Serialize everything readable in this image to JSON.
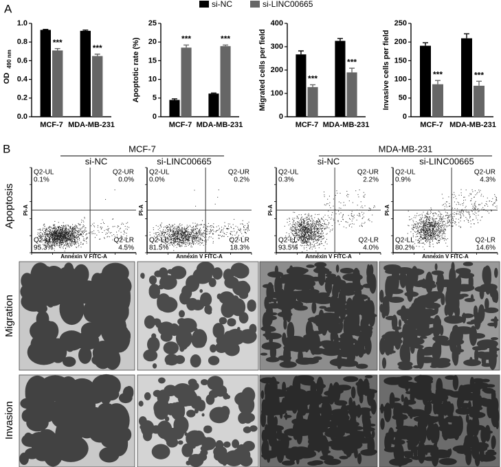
{
  "figure_labels": {
    "a": "A",
    "b": "B"
  },
  "legend": [
    {
      "name": "si-NC",
      "color": "#000000"
    },
    {
      "name": "si-LINC00665",
      "color": "#666666"
    }
  ],
  "chart_data": [
    {
      "type": "bar",
      "ylabel": "OD",
      "ylabel_sub": "490 nm",
      "categories": [
        "MCF-7",
        "MDA-MB-231"
      ],
      "ylim": [
        0,
        1
      ],
      "yticks": [
        {
          "value": 0,
          "label": "0.0"
        },
        0.2,
        0.4,
        0.6,
        0.8,
        {
          "value": 1,
          "label": "1.0"
        }
      ],
      "series": [
        {
          "color": "#000000",
          "values": [
            0.93,
            0.92
          ],
          "errors": [
            0.005,
            0.008
          ]
        },
        {
          "color": "#666666",
          "values": [
            0.71,
            0.65
          ],
          "errors": [
            0.02,
            0.02
          ],
          "annotations": [
            "***",
            "***"
          ]
        }
      ]
    },
    {
      "type": "bar",
      "ylabel": "Apoptotic rate (%)",
      "categories": [
        "MCF-7",
        "MDA-MB-231"
      ],
      "ylim": [
        0,
        25
      ],
      "yticks": [
        0,
        5,
        10,
        15,
        20,
        25
      ],
      "series": [
        {
          "color": "#000000",
          "values": [
            4.5,
            6.2
          ],
          "errors": [
            0.3,
            0.15
          ]
        },
        {
          "color": "#666666",
          "values": [
            18.5,
            18.9
          ],
          "errors": [
            0.7,
            0.3
          ],
          "annotations": [
            "***",
            "***"
          ]
        }
      ]
    },
    {
      "type": "bar",
      "ylabel": "Migrated cells per field",
      "categories": [
        "MCF-7",
        "MDA-MB-231"
      ],
      "ylim": [
        0,
        400
      ],
      "yticks": [
        0,
        100,
        200,
        300,
        400
      ],
      "series": [
        {
          "color": "#000000",
          "values": [
            267,
            325
          ],
          "errors": [
            15,
            10
          ]
        },
        {
          "color": "#666666",
          "values": [
            127,
            190
          ],
          "errors": [
            10,
            18
          ],
          "annotations": [
            "***",
            "***"
          ]
        }
      ]
    },
    {
      "type": "bar",
      "ylabel": "Invasive cells per field",
      "categories": [
        "MCF-7",
        "MDA-MB-231"
      ],
      "ylim": [
        0,
        250
      ],
      "yticks": [
        0,
        50,
        100,
        150,
        200,
        250
      ],
      "series": [
        {
          "color": "#000000",
          "values": [
            190,
            210
          ],
          "errors": [
            8,
            12
          ]
        },
        {
          "color": "#666666",
          "values": [
            87,
            83
          ],
          "errors": [
            10,
            12
          ],
          "annotations": [
            "***",
            "***"
          ]
        }
      ]
    }
  ],
  "panel_b": {
    "groups": [
      {
        "label": "MCF-7",
        "columns": [
          "si-NC",
          "si-LINC00665"
        ]
      },
      {
        "label": "MDA-MB-231",
        "columns": [
          "si-NC",
          "si-LINC00665"
        ]
      }
    ],
    "rows": [
      "Apoptosis",
      "Migration",
      "Invasion"
    ],
    "flow": {
      "x_label": "Annexin V FITC-A",
      "y_label": "PI-A",
      "plots": [
        [
          {
            "name": "Q2-UL",
            "value": "0.1%"
          },
          {
            "name": "Q2-UR",
            "value": "0.0%"
          },
          {
            "name": "Q2-LL",
            "value": "95.3%"
          },
          {
            "name": "Q2-LR",
            "value": "4.5%"
          }
        ],
        [
          {
            "name": "Q2-UL",
            "value": "0.0%"
          },
          {
            "name": "Q2-UR",
            "value": "0.2%"
          },
          {
            "name": "Q2-LL",
            "value": "81.5%"
          },
          {
            "name": "Q2-LR",
            "value": "18.3%"
          }
        ],
        [
          {
            "name": "Q2-UL",
            "value": "0.3%"
          },
          {
            "name": "Q2-UR",
            "value": "2.2%"
          },
          {
            "name": "Q2-LL",
            "value": "93.5%"
          },
          {
            "name": "Q2-LR",
            "value": "4.0%"
          }
        ],
        [
          {
            "name": "Q2-UL",
            "value": "0.9%"
          },
          {
            "name": "Q2-UR",
            "value": "4.3%"
          },
          {
            "name": "Q2-LL",
            "value": "80.2%"
          },
          {
            "name": "Q2-LR",
            "value": "14.6%"
          }
        ]
      ]
    }
  }
}
